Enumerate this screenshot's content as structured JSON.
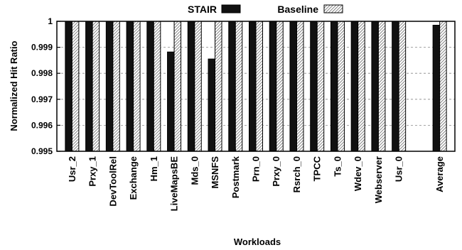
{
  "chart_data": {
    "type": "bar",
    "title": "",
    "xlabel": "Workloads",
    "ylabel": "Normalized Hit Ratio",
    "ylim": [
      0.995,
      1.0
    ],
    "yticks": [
      "0.995",
      "0.996",
      "0.997",
      "0.998",
      "0.999",
      "1"
    ],
    "grid": "horizontal dashed",
    "legend_placement": "top-center",
    "categories": [
      "Usr_2",
      "Prxy_1",
      "DevToolRel",
      "Exchange",
      "Hm_1",
      "LiveMapsBE",
      "Mds_0",
      "MSNFS",
      "Postmark",
      "Prn_0",
      "Prxy_0",
      "Rsrch_0",
      "TPCC",
      "Ts_0",
      "Wdev_0",
      "Webserver",
      "Usr_0",
      "Average"
    ],
    "series": [
      {
        "name": "STAIR",
        "color": "#111111",
        "pattern": "solid",
        "values": [
          1.0,
          1.0,
          1.0,
          1.0,
          1.0,
          0.99882,
          1.0,
          0.99855,
          1.0,
          1.0,
          1.0,
          1.0,
          1.0,
          1.0,
          1.0,
          1.0,
          1.0,
          0.99985
        ]
      },
      {
        "name": "Baseline",
        "color": "#9a9a9a",
        "pattern": "diagonal-hatch",
        "values": [
          1.0,
          1.0,
          1.0,
          1.0,
          1.0,
          1.0,
          1.0,
          1.0,
          1.0,
          1.0,
          1.0,
          1.0,
          1.0,
          1.0,
          1.0,
          1.0,
          1.0,
          1.0
        ]
      }
    ]
  }
}
